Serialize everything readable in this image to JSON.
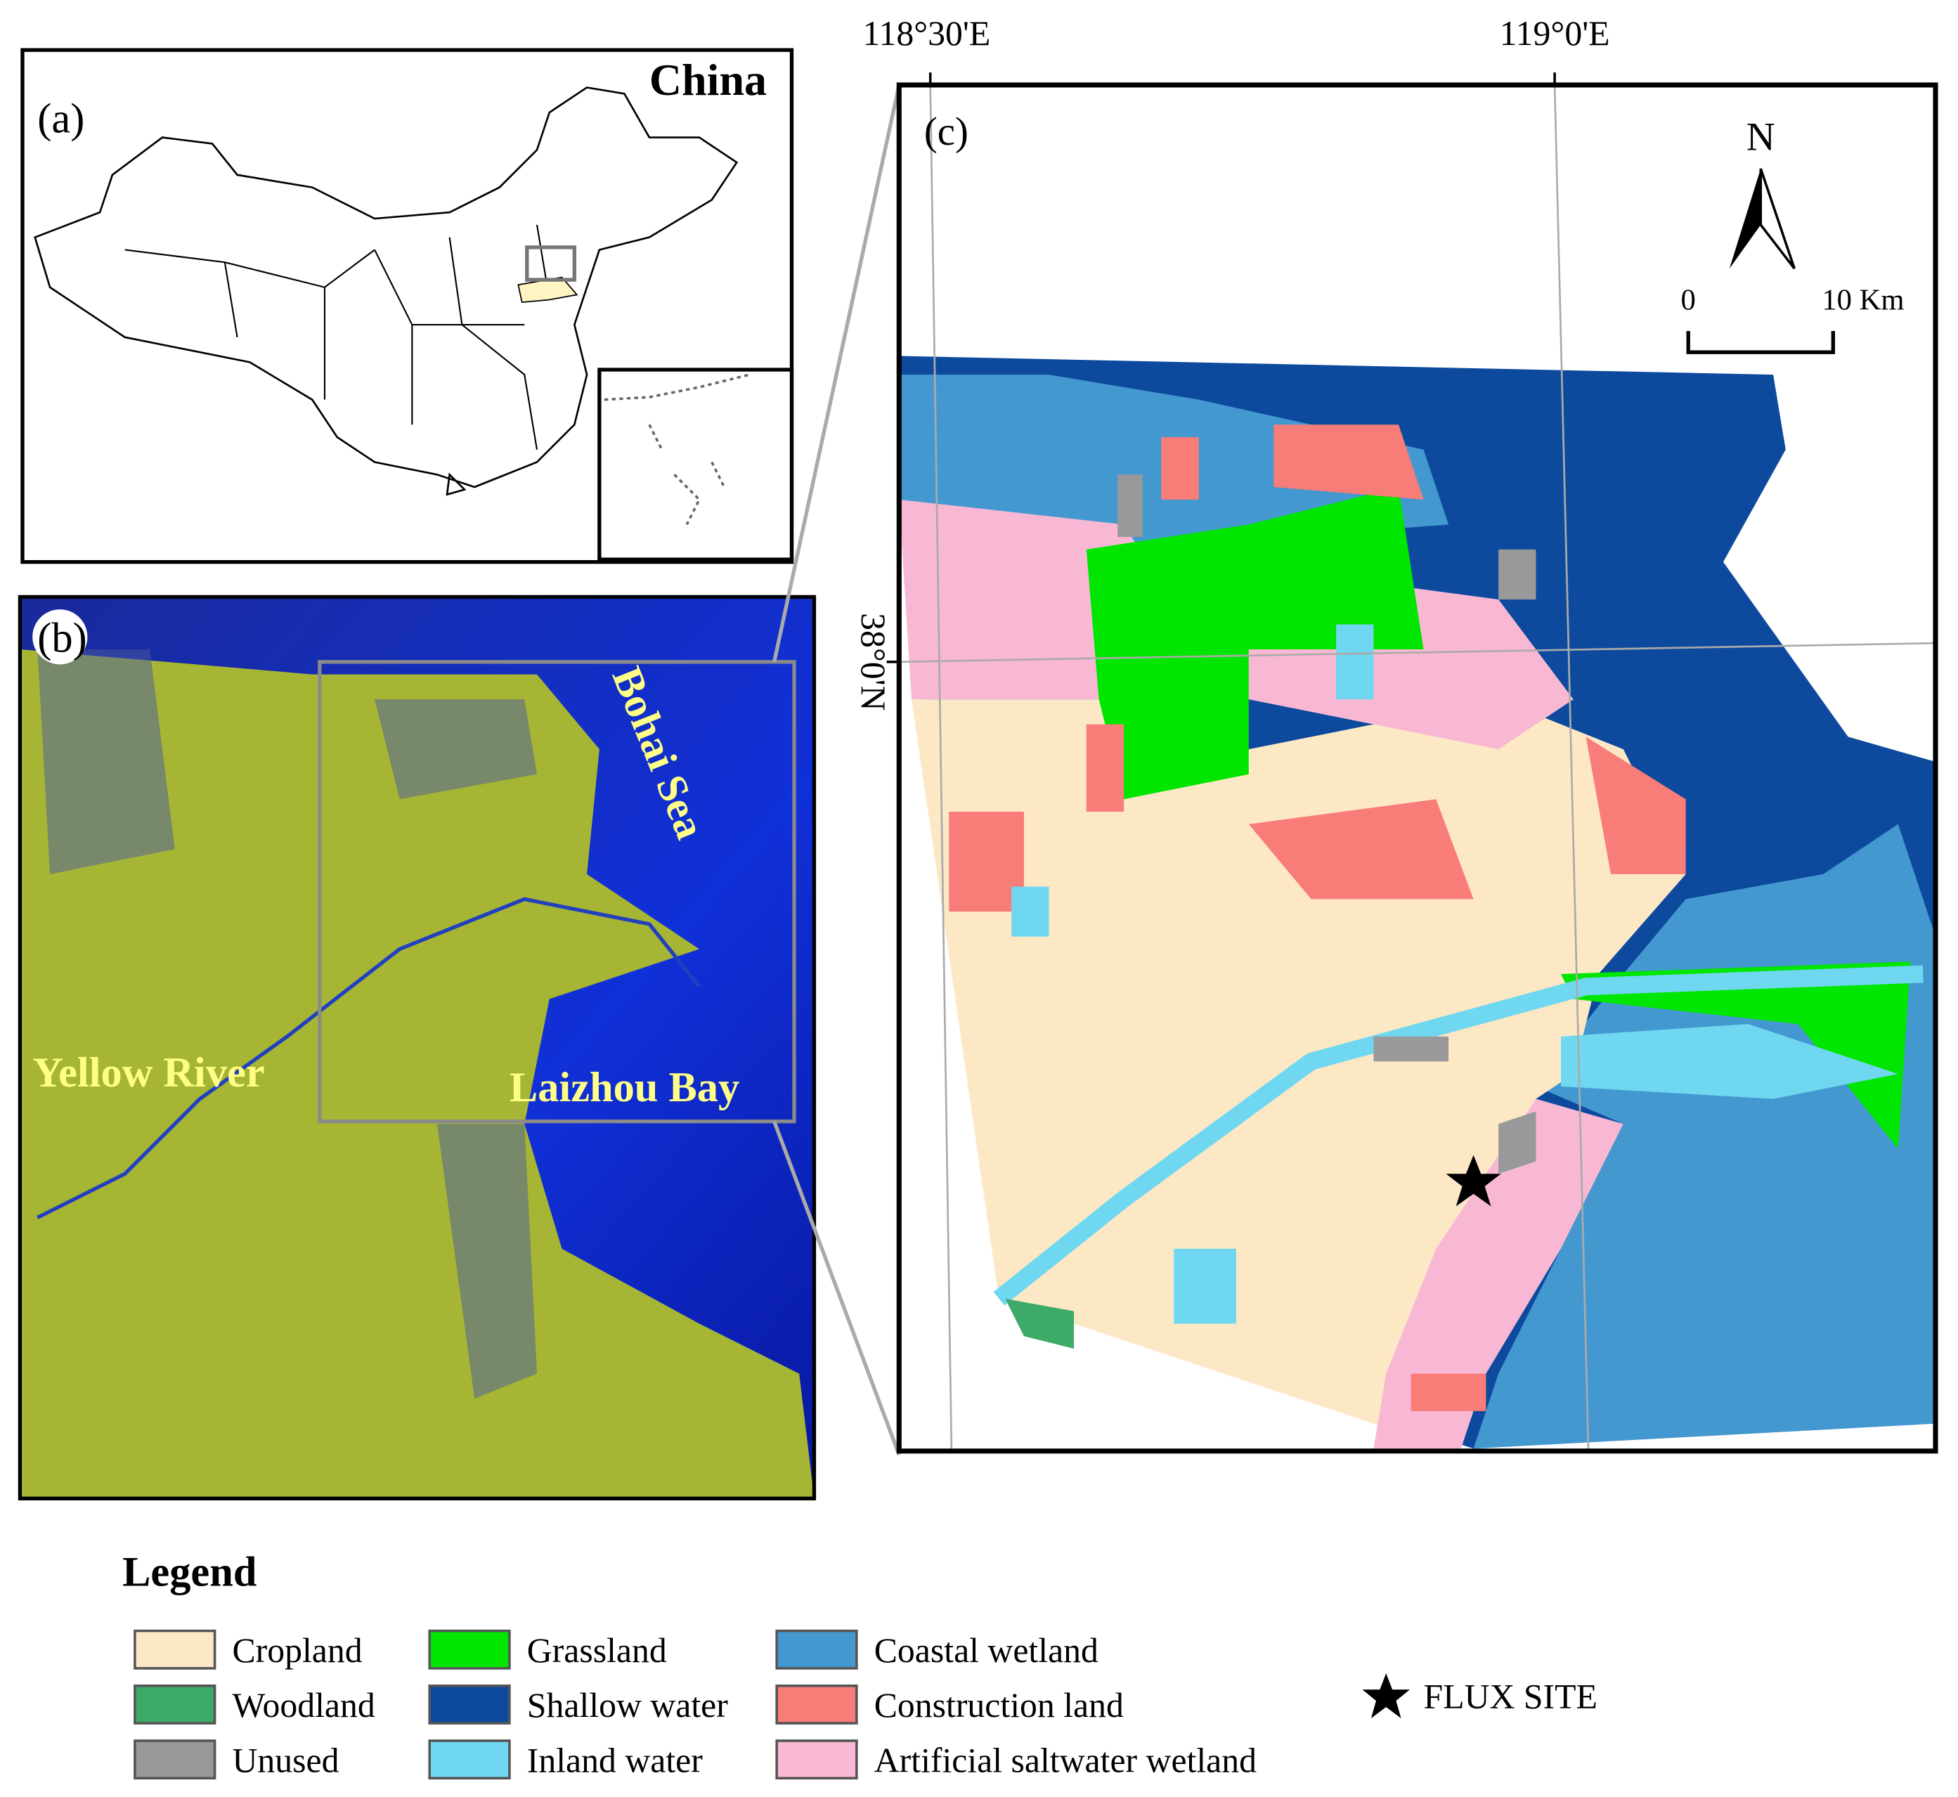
{
  "panel_a": {
    "label": "(a)",
    "title": "China"
  },
  "panel_b": {
    "label": "(b)",
    "annotations": [
      "Bohai Sea",
      "Yellow River",
      "Laizhou Bay"
    ]
  },
  "panel_c": {
    "label": "(c)",
    "x_axis_labels": [
      "118°30'E",
      "119°0'E"
    ],
    "y_axis_label": "38°0'N",
    "north_arrow": "N",
    "scale_bar": [
      "0",
      "10 Km"
    ]
  },
  "legend": {
    "title": "Legend",
    "items": [
      {
        "label": "Cropland",
        "color": "#fde8c6"
      },
      {
        "label": "Woodland",
        "color": "#3daa6a"
      },
      {
        "label": "Unused",
        "color": "#999999"
      },
      {
        "label": "Grassland",
        "color": "#00e600"
      },
      {
        "label": "Shallow water",
        "color": "#0d4a9e"
      },
      {
        "label": "Inland water",
        "color": "#6fd8f0"
      },
      {
        "label": "Coastal wetland",
        "color": "#4498d0"
      },
      {
        "label": "Construction land",
        "color": "#f87c78"
      },
      {
        "label": "Artificial saltwater wetland",
        "color": "#f8b8d4"
      }
    ],
    "marker": "FLUX SITE"
  }
}
